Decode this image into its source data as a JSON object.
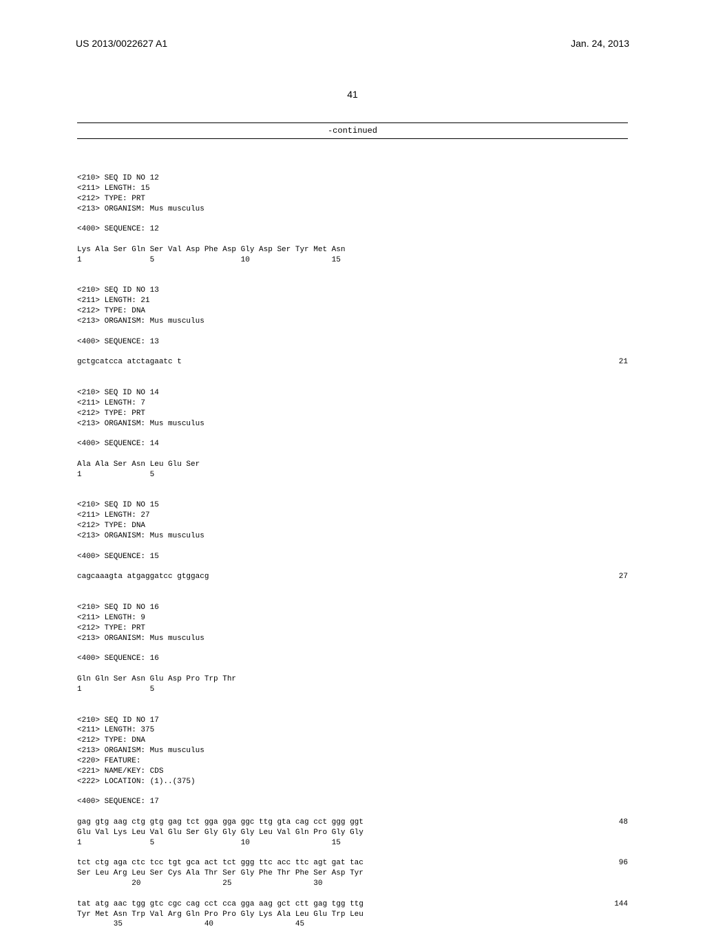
{
  "header": {
    "publication_number": "US 2013/0022627 A1",
    "publication_date": "Jan. 24, 2013"
  },
  "page_number": "41",
  "continued_label": "-continued",
  "sequences": [
    {
      "id": "seq12",
      "meta": [
        "<210> SEQ ID NO 12",
        "<211> LENGTH: 15",
        "<212> TYPE: PRT",
        "<213> ORGANISM: Mus musculus"
      ],
      "seq_label": "<400> SEQUENCE: 12",
      "data": [
        {
          "text": "Lys Ala Ser Gln Ser Val Asp Phe Asp Gly Asp Ser Tyr Met Asn",
          "num": ""
        },
        {
          "text": "1               5                   10                  15",
          "num": ""
        }
      ]
    },
    {
      "id": "seq13",
      "meta": [
        "<210> SEQ ID NO 13",
        "<211> LENGTH: 21",
        "<212> TYPE: DNA",
        "<213> ORGANISM: Mus musculus"
      ],
      "seq_label": "<400> SEQUENCE: 13",
      "data": [
        {
          "text": "gctgcatcca atctagaatc t",
          "num": "21"
        }
      ]
    },
    {
      "id": "seq14",
      "meta": [
        "<210> SEQ ID NO 14",
        "<211> LENGTH: 7",
        "<212> TYPE: PRT",
        "<213> ORGANISM: Mus musculus"
      ],
      "seq_label": "<400> SEQUENCE: 14",
      "data": [
        {
          "text": "Ala Ala Ser Asn Leu Glu Ser",
          "num": ""
        },
        {
          "text": "1               5",
          "num": ""
        }
      ]
    },
    {
      "id": "seq15",
      "meta": [
        "<210> SEQ ID NO 15",
        "<211> LENGTH: 27",
        "<212> TYPE: DNA",
        "<213> ORGANISM: Mus musculus"
      ],
      "seq_label": "<400> SEQUENCE: 15",
      "data": [
        {
          "text": "cagcaaagta atgaggatcc gtggacg",
          "num": "27"
        }
      ]
    },
    {
      "id": "seq16",
      "meta": [
        "<210> SEQ ID NO 16",
        "<211> LENGTH: 9",
        "<212> TYPE: PRT",
        "<213> ORGANISM: Mus musculus"
      ],
      "seq_label": "<400> SEQUENCE: 16",
      "data": [
        {
          "text": "Gln Gln Ser Asn Glu Asp Pro Trp Thr",
          "num": ""
        },
        {
          "text": "1               5",
          "num": ""
        }
      ]
    },
    {
      "id": "seq17",
      "meta": [
        "<210> SEQ ID NO 17",
        "<211> LENGTH: 375",
        "<212> TYPE: DNA",
        "<213> ORGANISM: Mus musculus",
        "<220> FEATURE:",
        "<221> NAME/KEY: CDS",
        "<222> LOCATION: (1)..(375)"
      ],
      "seq_label": "<400> SEQUENCE: 17",
      "data": [
        {
          "text": "gag gtg aag ctg gtg gag tct gga gga ggc ttg gta cag cct ggg ggt",
          "num": "48"
        },
        {
          "text": "Glu Val Lys Leu Val Glu Ser Gly Gly Gly Leu Val Gln Pro Gly Gly",
          "num": ""
        },
        {
          "text": "1               5                   10                  15",
          "num": ""
        },
        {
          "text": "",
          "num": ""
        },
        {
          "text": "tct ctg aga ctc tcc tgt gca act tct ggg ttc acc ttc agt gat tac",
          "num": "96"
        },
        {
          "text": "Ser Leu Arg Leu Ser Cys Ala Thr Ser Gly Phe Thr Phe Ser Asp Tyr",
          "num": ""
        },
        {
          "text": "            20                  25                  30",
          "num": ""
        },
        {
          "text": "",
          "num": ""
        },
        {
          "text": "tat atg aac tgg gtc cgc cag cct cca gga aag gct ctt gag tgg ttg",
          "num": "144"
        },
        {
          "text": "Tyr Met Asn Trp Val Arg Gln Pro Pro Gly Lys Ala Leu Glu Trp Leu",
          "num": ""
        },
        {
          "text": "        35                  40                  45",
          "num": ""
        }
      ]
    }
  ]
}
